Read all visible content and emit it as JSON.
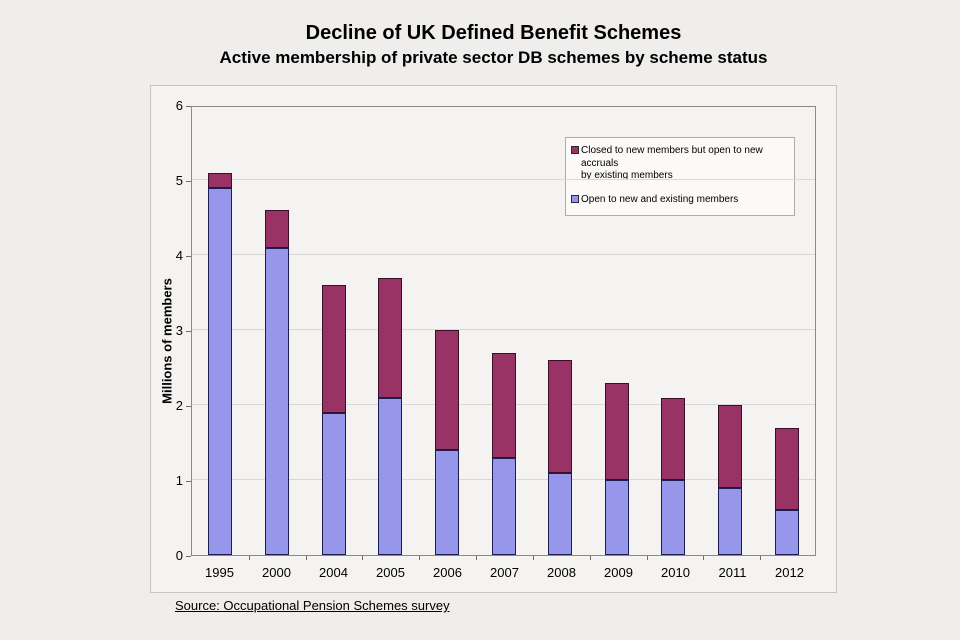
{
  "header": {
    "title": "Decline of UK Defined Benefit Schemes",
    "subtitle": "Active membership of private sector DB schemes by scheme status"
  },
  "chart_data": {
    "type": "bar",
    "stacked": true,
    "title": "Decline of UK Defined Benefit Schemes",
    "subtitle": "Active membership of private sector DB schemes by scheme status",
    "categories": [
      "1995",
      "2000",
      "2004",
      "2005",
      "2006",
      "2007",
      "2008",
      "2009",
      "2010",
      "2011",
      "2012"
    ],
    "series": [
      {
        "name": "Open to new and existing members",
        "color": "#9696EB",
        "border_color": "#1d1d4f",
        "values": [
          4.9,
          4.1,
          1.9,
          2.1,
          1.4,
          1.3,
          1.1,
          1.0,
          1.0,
          0.9,
          0.6
        ]
      },
      {
        "name": "Closed to new members but open to new accruals by existing members",
        "color": "#993366",
        "border_color": "#3a0f28",
        "values": [
          0.2,
          0.5,
          1.7,
          1.6,
          1.6,
          1.4,
          1.5,
          1.3,
          1.1,
          1.1,
          1.1
        ]
      }
    ],
    "totals": [
      5.1,
      4.6,
      3.6,
      3.7,
      3.0,
      2.7,
      2.6,
      2.3,
      2.1,
      2.0,
      1.7
    ],
    "xlabel": "",
    "ylabel": "Millions of members",
    "ylim": [
      0,
      6
    ],
    "yticks": [
      0,
      1,
      2,
      3,
      4,
      5,
      6
    ],
    "grid": "horizontal",
    "legend": {
      "position": "top-right-inside",
      "items": [
        {
          "label": "Closed to new members but open to new accruals\nby existing members",
          "color": "#993366"
        },
        {
          "label": "Open to new and existing members",
          "color": "#9696EB"
        }
      ]
    }
  },
  "footer": {
    "source": "Source: Occupational Pension Schemes survey"
  }
}
